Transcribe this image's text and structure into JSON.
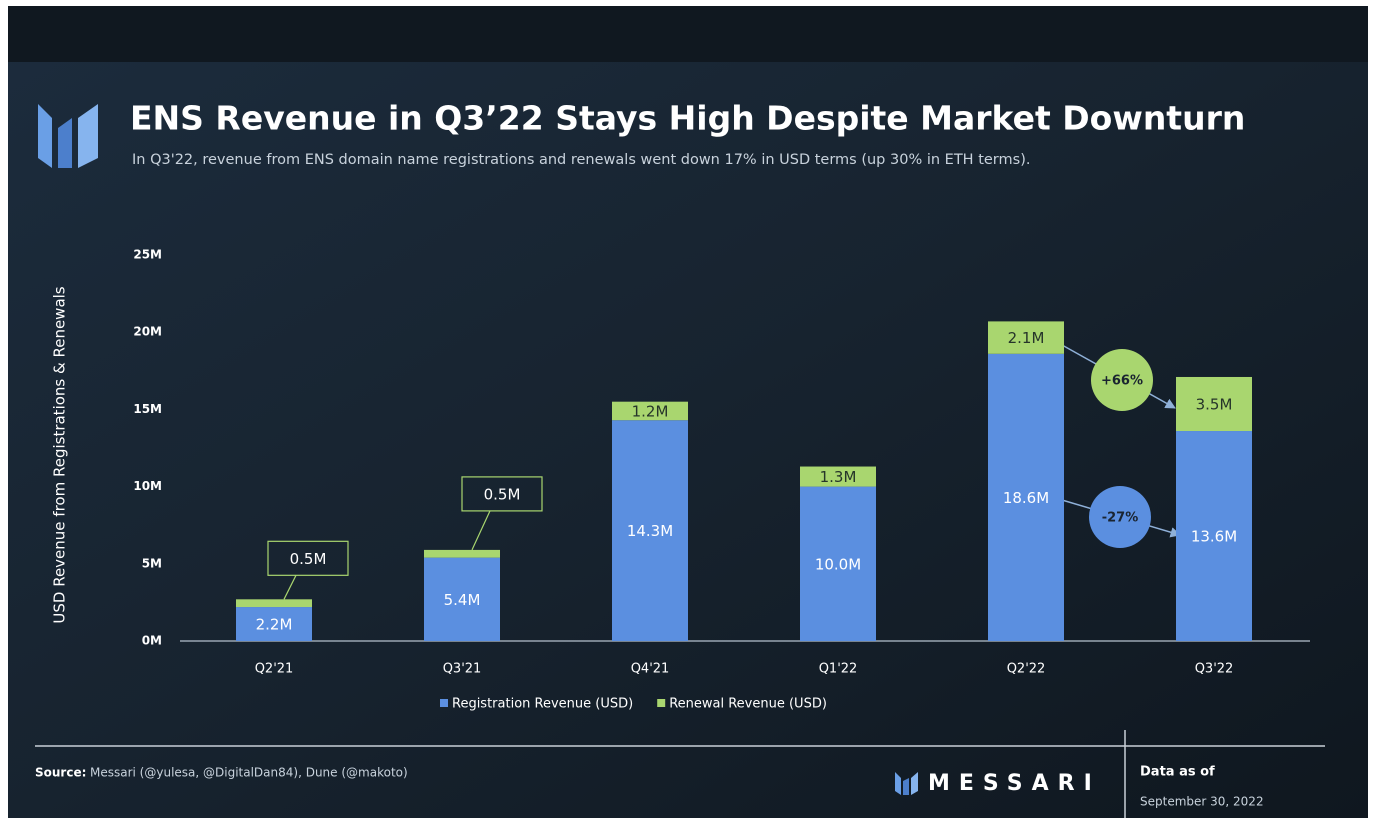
{
  "chart_data": {
    "type": "stacked-bar",
    "title": "ENS Revenue in Q3’22 Stays High Despite Market Downturn",
    "subtitle": "In Q3'22, revenue from ENS domain name registrations and renewals went down 17% in USD terms (up 30% in ETH terms).",
    "y_label": "USD Revenue from Registrations & Renewals",
    "categories": [
      "Q2'21",
      "Q3'21",
      "Q4'21",
      "Q1'22",
      "Q2'22",
      "Q3'22"
    ],
    "series": [
      {
        "name": "Registration Revenue (USD)",
        "color": "#5b8fe0",
        "values": [
          2.2,
          5.4,
          14.3,
          10.0,
          18.6,
          13.6
        ],
        "value_labels": [
          "2.2M",
          "5.4M",
          "14.3M",
          "10.0M",
          "18.6M",
          "13.6M"
        ]
      },
      {
        "name": "Renewal Revenue (USD)",
        "color": "#a9d66f",
        "values": [
          0.5,
          0.5,
          1.2,
          1.3,
          2.1,
          3.5
        ],
        "value_labels": [
          "0.5M",
          "0.5M",
          "1.2M",
          "1.3M",
          "2.1M",
          "3.5M"
        ]
      }
    ],
    "ylim": [
      0,
      25
    ],
    "yticks": [
      {
        "value": 0,
        "label": "0M"
      },
      {
        "value": 5,
        "label": "5M"
      },
      {
        "value": 10,
        "label": "10M"
      },
      {
        "value": 15,
        "label": "15M"
      },
      {
        "value": 20,
        "label": "20M"
      },
      {
        "value": 25,
        "label": "25M"
      }
    ],
    "grid": false,
    "annotations": [
      "+66%",
      "-27%"
    ],
    "source_label": "Source:",
    "source": "Messari (@yulesa, @DigitalDan84), Dune (@makoto)",
    "brand": "MESSARI",
    "date_label": "Data as of",
    "date": "September 30, 2022"
  }
}
